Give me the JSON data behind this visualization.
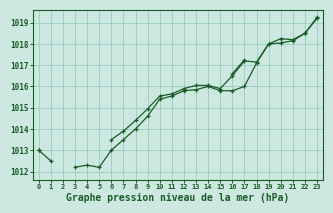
{
  "title": "Graphe pression niveau de la mer (hPa)",
  "background_color": "#cce8e0",
  "plot_bg_color": "#cce8e0",
  "grid_color": "#99ccc0",
  "line_color": "#1a5c28",
  "xlim": [
    -0.5,
    23.5
  ],
  "ylim": [
    1011.6,
    1019.6
  ],
  "yticks": [
    1012,
    1013,
    1014,
    1015,
    1016,
    1017,
    1018,
    1019
  ],
  "xticks": [
    0,
    1,
    2,
    3,
    4,
    5,
    6,
    7,
    8,
    9,
    10,
    11,
    12,
    13,
    14,
    15,
    16,
    17,
    18,
    19,
    20,
    21,
    22,
    23
  ],
  "x": [
    0,
    1,
    2,
    3,
    4,
    5,
    6,
    7,
    8,
    9,
    10,
    11,
    12,
    13,
    14,
    15,
    16,
    17,
    18,
    19,
    20,
    21,
    22,
    23
  ],
  "line1": [
    1013.0,
    1012.5,
    null,
    1012.2,
    1012.3,
    1012.2,
    1013.0,
    1013.5,
    1014.0,
    1014.6,
    1015.4,
    1015.55,
    1015.8,
    1015.85,
    1016.0,
    1015.8,
    1015.8,
    1016.0,
    1017.1,
    1018.0,
    1018.05,
    1018.15,
    1018.5,
    1019.2
  ],
  "line2": [
    1013.0,
    null,
    null,
    null,
    null,
    null,
    1013.5,
    1013.9,
    1014.4,
    1014.95,
    1015.55,
    1015.65,
    1015.9,
    1016.05,
    1016.05,
    1015.9,
    1016.5,
    1017.2,
    1017.15,
    1018.0,
    1018.25,
    1018.2,
    1018.5,
    null
  ],
  "line3": [
    null,
    null,
    null,
    null,
    null,
    null,
    null,
    null,
    null,
    null,
    null,
    null,
    null,
    null,
    null,
    null,
    1016.6,
    1017.25,
    null,
    null,
    null,
    null,
    1018.5,
    1019.25
  ],
  "line1_segs": [
    [
      0,
      1
    ],
    [
      3,
      4,
      5,
      6,
      7,
      8,
      9,
      10,
      11,
      12,
      13,
      14,
      15,
      16,
      17,
      18,
      19,
      20,
      21,
      22,
      23
    ]
  ],
  "line2_segs": [
    [
      0
    ],
    [
      6,
      7,
      8,
      9,
      10,
      11,
      12,
      13,
      14,
      15,
      16,
      17,
      18,
      19,
      20,
      21,
      22
    ]
  ],
  "ylabel_fontsize": 5.5,
  "xlabel_fontsize": 5.0,
  "title_fontsize": 7.0
}
